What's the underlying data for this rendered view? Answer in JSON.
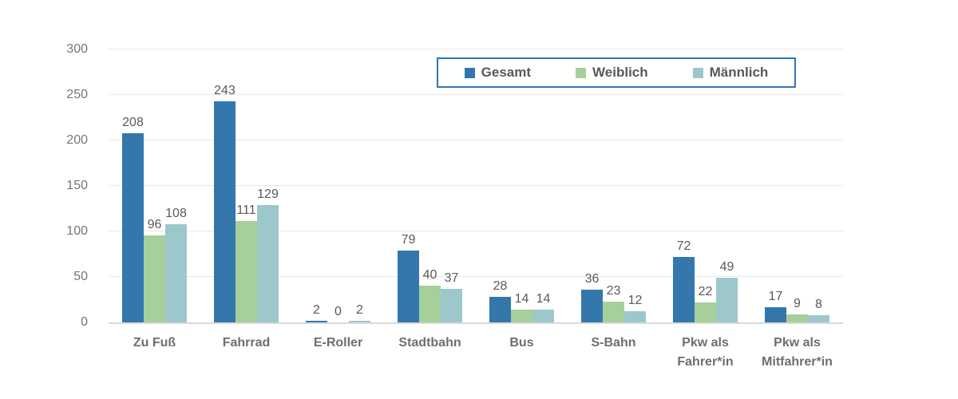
{
  "chart_data": {
    "type": "bar",
    "title": "",
    "categories": [
      "Zu Fuß",
      "Fahrrad",
      "E-Roller",
      "Stadtbahn",
      "Bus",
      "S-Bahn",
      "Pkw als Fahrer*in",
      "Pkw als Mitfahrer*in"
    ],
    "series": [
      {
        "name": "Gesamt",
        "color": "#3377AD",
        "values": [
          208,
          243,
          2,
          79,
          28,
          36,
          72,
          17
        ]
      },
      {
        "name": "Weiblich",
        "color": "#A6CF9C",
        "values": [
          96,
          111,
          0,
          40,
          14,
          23,
          22,
          9
        ]
      },
      {
        "name": "Männlich",
        "color": "#9DC8CB",
        "values": [
          108,
          129,
          2,
          37,
          14,
          12,
          49,
          8
        ]
      }
    ],
    "xlabel": "",
    "ylabel": "",
    "ylim": [
      0,
      300
    ],
    "yticks": [
      0,
      50,
      100,
      150,
      200,
      250,
      300
    ],
    "grid": true,
    "legend_position": "top-center",
    "data_labels": true
  },
  "colors": {
    "bar_gesamt": "#3377AD",
    "bar_weiblich": "#A6CF9C",
    "bar_maennlich": "#9DC8CB",
    "legend_border": "#2e75b6",
    "gridline": "#e8e8e8",
    "axis_line": "#d9d9d9",
    "tick_text": "#757575",
    "value_text": "#595959",
    "category_text": "#6e6e6e"
  }
}
